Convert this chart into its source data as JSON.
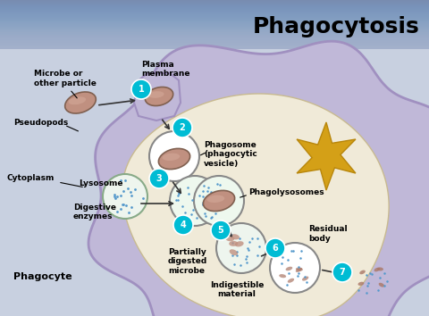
{
  "title": "Phagocytosis",
  "title_fontsize": 18,
  "title_fontweight": "bold",
  "header_color": "#8899bb",
  "bg_color": "#c8d0e0",
  "cell_outer_color": "#c0b8d8",
  "cell_outer_edge": "#a090c0",
  "cell_inner_color": "#f0ead8",
  "cell_inner_edge": "#d0c090",
  "step_circle_color": "#00bcd4",
  "step_text_color": "#ffffff",
  "microbe_color": "#c09080",
  "microbe_edge": "#806050",
  "lyso_dot_color": "#5599cc",
  "star_color": "#d4a017",
  "star_edge": "#b8860b",
  "arrow_color": "#333333",
  "label_color": "#000000",
  "labels": {
    "microbe": "Microbe or\nother particle",
    "pseudopods": "Pseudopods",
    "plasma_membrane": "Plasma\nmembrane",
    "cytoplasm": "Cytoplasm",
    "lysosome": "Lysosome",
    "digestive_enzymes": "Digestive\nenzymes",
    "phagosome": "Phagosome\n(phagocytic\nvesicle)",
    "phagolysosomes": "Phagolysosomes",
    "partially_digested": "Partially\ndigested\nmicrobe",
    "indigestible": "Indigestible\nmaterial",
    "residual_body": "Residual\nbody",
    "phagocyte": "Phagocyte"
  }
}
